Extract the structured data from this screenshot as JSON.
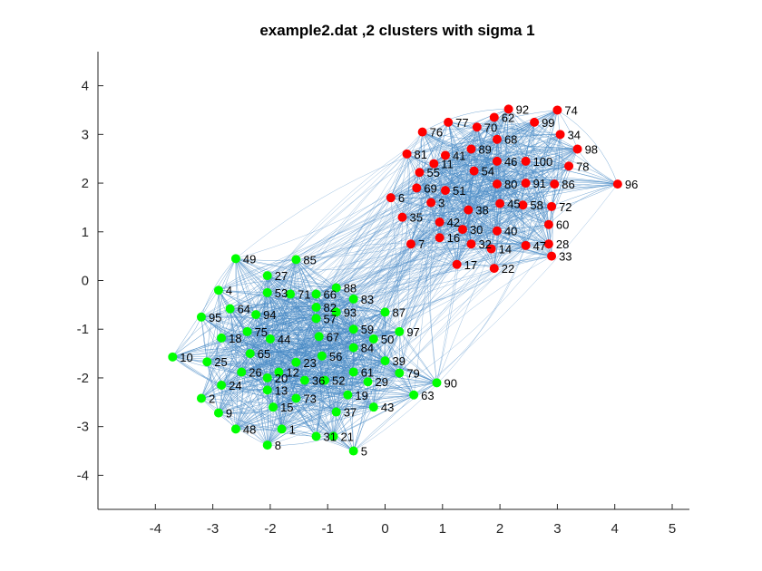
{
  "chart_data": {
    "type": "scatter",
    "title": "example2.dat ,2 clusters with sigma 1",
    "xlabel": "",
    "ylabel": "",
    "xlim": [
      -5,
      5.3
    ],
    "ylim": [
      -4.7,
      4.7
    ],
    "xticks": [
      -4,
      -3,
      -2,
      -1,
      0,
      1,
      2,
      3,
      4,
      5
    ],
    "yticks": [
      -4,
      -3,
      -2,
      -1,
      0,
      1,
      2,
      3,
      4
    ],
    "grid": false,
    "colors": {
      "cluster_1": "#ff0000",
      "cluster_2": "#00ff00",
      "edges": "#4a8bc6",
      "axes": "#262626"
    },
    "clusters": [
      {
        "cluster": 1,
        "color": "#ff0000",
        "points": [
          {
            "id": "92",
            "x": 2.15,
            "y": 3.52
          },
          {
            "id": "74",
            "x": 3.0,
            "y": 3.5
          },
          {
            "id": "62",
            "x": 1.9,
            "y": 3.35
          },
          {
            "id": "77",
            "x": 1.1,
            "y": 3.25
          },
          {
            "id": "99",
            "x": 2.6,
            "y": 3.25
          },
          {
            "id": "70",
            "x": 1.6,
            "y": 3.15
          },
          {
            "id": "76",
            "x": 0.65,
            "y": 3.05
          },
          {
            "id": "34",
            "x": 3.05,
            "y": 3.0
          },
          {
            "id": "68",
            "x": 1.95,
            "y": 2.9
          },
          {
            "id": "89",
            "x": 1.5,
            "y": 2.7
          },
          {
            "id": "98",
            "x": 3.35,
            "y": 2.7
          },
          {
            "id": "81",
            "x": 0.38,
            "y": 2.6
          },
          {
            "id": "41",
            "x": 1.05,
            "y": 2.57
          },
          {
            "id": "46",
            "x": 1.95,
            "y": 2.45
          },
          {
            "id": "100",
            "x": 2.45,
            "y": 2.45
          },
          {
            "id": "11",
            "x": 0.85,
            "y": 2.4
          },
          {
            "id": "78",
            "x": 3.2,
            "y": 2.35
          },
          {
            "id": "54",
            "x": 1.55,
            "y": 2.25
          },
          {
            "id": "55",
            "x": 0.6,
            "y": 2.22
          },
          {
            "id": "80",
            "x": 1.95,
            "y": 1.98
          },
          {
            "id": "91",
            "x": 2.45,
            "y": 2.0
          },
          {
            "id": "86",
            "x": 2.95,
            "y": 1.98
          },
          {
            "id": "96",
            "x": 4.05,
            "y": 1.98
          },
          {
            "id": "69",
            "x": 0.55,
            "y": 1.9
          },
          {
            "id": "51",
            "x": 1.05,
            "y": 1.85
          },
          {
            "id": "6",
            "x": 0.1,
            "y": 1.7
          },
          {
            "id": "3",
            "x": 0.8,
            "y": 1.6
          },
          {
            "id": "45",
            "x": 2.0,
            "y": 1.58
          },
          {
            "id": "58",
            "x": 2.4,
            "y": 1.55
          },
          {
            "id": "72",
            "x": 2.9,
            "y": 1.52
          },
          {
            "id": "38",
            "x": 1.45,
            "y": 1.45
          },
          {
            "id": "35",
            "x": 0.3,
            "y": 1.3
          },
          {
            "id": "42",
            "x": 0.95,
            "y": 1.2
          },
          {
            "id": "60",
            "x": 2.85,
            "y": 1.15
          },
          {
            "id": "30",
            "x": 1.35,
            "y": 1.05
          },
          {
            "id": "40",
            "x": 1.95,
            "y": 1.02
          },
          {
            "id": "16",
            "x": 0.95,
            "y": 0.88
          },
          {
            "id": "7",
            "x": 0.45,
            "y": 0.75
          },
          {
            "id": "32",
            "x": 1.5,
            "y": 0.75
          },
          {
            "id": "14",
            "x": 1.85,
            "y": 0.65
          },
          {
            "id": "47",
            "x": 2.45,
            "y": 0.72
          },
          {
            "id": "28",
            "x": 2.85,
            "y": 0.75
          },
          {
            "id": "33",
            "x": 2.9,
            "y": 0.5
          },
          {
            "id": "17",
            "x": 1.25,
            "y": 0.33
          },
          {
            "id": "22",
            "x": 1.9,
            "y": 0.25
          }
        ]
      },
      {
        "cluster": 2,
        "color": "#00ff00",
        "points": [
          {
            "id": "49",
            "x": -2.6,
            "y": 0.45
          },
          {
            "id": "85",
            "x": -1.55,
            "y": 0.43
          },
          {
            "id": "27",
            "x": -2.05,
            "y": 0.1
          },
          {
            "id": "88",
            "x": -0.85,
            "y": -0.15
          },
          {
            "id": "4",
            "x": -2.9,
            "y": -0.2
          },
          {
            "id": "53",
            "x": -2.05,
            "y": -0.25
          },
          {
            "id": "71",
            "x": -1.65,
            "y": -0.28
          },
          {
            "id": "66",
            "x": -1.2,
            "y": -0.28
          },
          {
            "id": "83",
            "x": -0.55,
            "y": -0.38
          },
          {
            "id": "82",
            "x": -1.2,
            "y": -0.55
          },
          {
            "id": "64",
            "x": -2.7,
            "y": -0.58
          },
          {
            "id": "93",
            "x": -0.85,
            "y": -0.65
          },
          {
            "id": "87",
            "x": 0.0,
            "y": -0.65
          },
          {
            "id": "94",
            "x": -2.25,
            "y": -0.7
          },
          {
            "id": "95",
            "x": -3.2,
            "y": -0.75
          },
          {
            "id": "57",
            "x": -1.2,
            "y": -0.78
          },
          {
            "id": "59",
            "x": -0.55,
            "y": -1.0
          },
          {
            "id": "75",
            "x": -2.4,
            "y": -1.05
          },
          {
            "id": "97",
            "x": 0.25,
            "y": -1.05
          },
          {
            "id": "67",
            "x": -1.15,
            "y": -1.15
          },
          {
            "id": "18",
            "x": -2.85,
            "y": -1.18
          },
          {
            "id": "44",
            "x": -2.0,
            "y": -1.2
          },
          {
            "id": "50",
            "x": -0.2,
            "y": -1.2
          },
          {
            "id": "84",
            "x": -0.55,
            "y": -1.38
          },
          {
            "id": "65",
            "x": -2.35,
            "y": -1.5
          },
          {
            "id": "56",
            "x": -1.1,
            "y": -1.55
          },
          {
            "id": "10",
            "x": -3.7,
            "y": -1.57
          },
          {
            "id": "39",
            "x": 0.0,
            "y": -1.65
          },
          {
            "id": "25",
            "x": -3.1,
            "y": -1.67
          },
          {
            "id": "23",
            "x": -1.55,
            "y": -1.68
          },
          {
            "id": "26",
            "x": -2.5,
            "y": -1.88
          },
          {
            "id": "12",
            "x": -1.85,
            "y": -1.88
          },
          {
            "id": "61",
            "x": -0.55,
            "y": -1.88
          },
          {
            "id": "79",
            "x": 0.25,
            "y": -1.9
          },
          {
            "id": "20",
            "x": -2.05,
            "y": -2.0
          },
          {
            "id": "36",
            "x": -1.4,
            "y": -2.05
          },
          {
            "id": "52",
            "x": -1.05,
            "y": -2.05
          },
          {
            "id": "29",
            "x": -0.3,
            "y": -2.08
          },
          {
            "id": "90",
            "x": 0.9,
            "y": -2.1
          },
          {
            "id": "24",
            "x": -2.85,
            "y": -2.15
          },
          {
            "id": "13",
            "x": -2.05,
            "y": -2.25
          },
          {
            "id": "19",
            "x": -0.65,
            "y": -2.35
          },
          {
            "id": "63",
            "x": 0.5,
            "y": -2.35
          },
          {
            "id": "2",
            "x": -3.2,
            "y": -2.42
          },
          {
            "id": "73",
            "x": -1.55,
            "y": -2.42
          },
          {
            "id": "15",
            "x": -1.95,
            "y": -2.6
          },
          {
            "id": "43",
            "x": -0.2,
            "y": -2.6
          },
          {
            "id": "9",
            "x": -2.9,
            "y": -2.72
          },
          {
            "id": "37",
            "x": -0.85,
            "y": -2.7
          },
          {
            "id": "48",
            "x": -2.6,
            "y": -3.05
          },
          {
            "id": "1",
            "x": -1.8,
            "y": -3.05
          },
          {
            "id": "31",
            "x": -1.2,
            "y": -3.2
          },
          {
            "id": "21",
            "x": -0.9,
            "y": -3.2
          },
          {
            "id": "8",
            "x": -2.05,
            "y": -3.38
          },
          {
            "id": "5",
            "x": -0.55,
            "y": -3.5
          }
        ]
      }
    ]
  }
}
